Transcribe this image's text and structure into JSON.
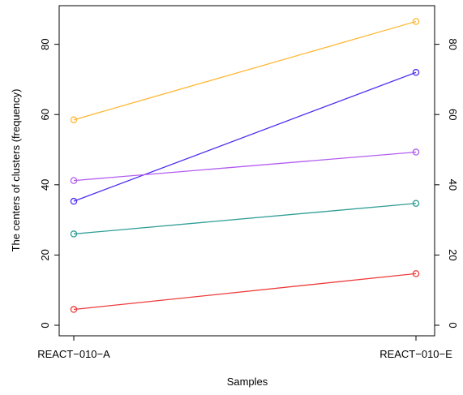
{
  "chart_data": {
    "type": "line",
    "title": "",
    "xlabel": "Samples",
    "ylabel": "The centers of clusters (frequency)",
    "categories": [
      "REACT−010−A",
      "REACT−010−E"
    ],
    "ylim": [
      -3,
      91
    ],
    "yticks": [
      "0",
      "20",
      "40",
      "60",
      "80"
    ],
    "right_axis": true,
    "grid": false,
    "legend": "none",
    "series": [
      {
        "color": "#ffb733",
        "values": [
          58.5,
          86.5
        ]
      },
      {
        "color": "#4b2ff0",
        "values": [
          35.3,
          72.0
        ]
      },
      {
        "color": "#b35cf0",
        "values": [
          41.2,
          49.3
        ]
      },
      {
        "color": "#2f9e96",
        "values": [
          26.0,
          34.7
        ]
      },
      {
        "color": "#ee3b3b",
        "values": [
          4.5,
          14.7
        ]
      }
    ]
  }
}
